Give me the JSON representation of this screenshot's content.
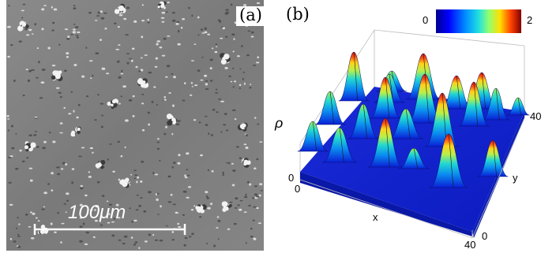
{
  "panel_a": {
    "tag": "(a)",
    "scale_bar_label": "100μm"
  },
  "panel_b": {
    "tag": "(b)",
    "colorbar": {
      "min": "0",
      "max": "2"
    },
    "axes": {
      "z_label": "ρ",
      "x_label": "x",
      "y_label": "y",
      "x_tick_start": "0",
      "x_tick_end": "40",
      "y_tick_start": "0",
      "y_tick_end": "40",
      "z_tick_start": "0"
    }
  },
  "colors": {
    "photo_background": "#7e7e7e",
    "surface_low": "#0a1fd6",
    "surface_high": "#c81414"
  }
}
